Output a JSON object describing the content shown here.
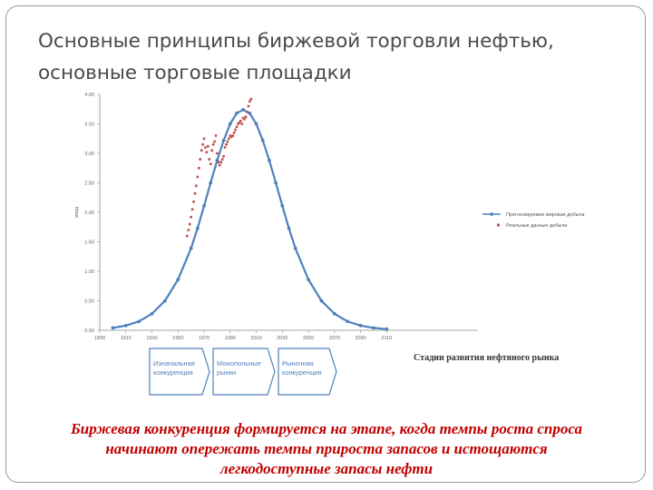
{
  "slide": {
    "title_line1": "Основные принципы биржевой торговли нефтью,",
    "title_line2": "основные торговые площадки",
    "stage_caption": "Стадии развития нефтяного рынка",
    "stages": [
      {
        "label_line1": "Изначальная",
        "label_line2": "конкуренция"
      },
      {
        "label_line1": "Монопольные",
        "label_line2": "рынки"
      },
      {
        "label_line1": "Рыночная",
        "label_line2": "конкуренция"
      }
    ],
    "footer_line1": "Биржевая конкуренция формируется на этапе, когда темпы роста спроса",
    "footer_line2": "начинают опережать темпы прироста запасов и истощаются",
    "footer_line3": "легкодоступные запасы нефти",
    "colors": {
      "modeled": "#4f81bd",
      "actual": "#c0504d",
      "stage_box": "#4f81bd",
      "footer_text": "#c00000"
    }
  },
  "chart_data": {
    "type": "scatter",
    "title": "",
    "xlabel": "",
    "ylabel": "млрд",
    "xlim": [
      1890,
      2180
    ],
    "ylim": [
      0,
      4
    ],
    "x_ticks": [
      "1890",
      "1910",
      "1930",
      "1950",
      "1970",
      "1990",
      "2010",
      "2030",
      "2050",
      "2070",
      "2090",
      "2110"
    ],
    "y_ticks": [
      "0.00",
      "0.50",
      "1.00",
      "1.50",
      "2.00",
      "2.50",
      "3.00",
      "3.50",
      "4.00"
    ],
    "series": [
      {
        "name": "Прогнозируемая мировая добыча",
        "style": "line-markers",
        "x": [
          1900,
          1910,
          1920,
          1930,
          1940,
          1950,
          1960,
          1965,
          1970,
          1975,
          1980,
          1985,
          1990,
          1995,
          2000,
          2005,
          2010,
          2015,
          2020,
          2025,
          2030,
          2035,
          2040,
          2050,
          2060,
          2070,
          2080,
          2090,
          2100,
          2110
        ],
        "y": [
          0.04,
          0.08,
          0.15,
          0.28,
          0.5,
          0.86,
          1.39,
          1.73,
          2.11,
          2.5,
          2.88,
          3.22,
          3.5,
          3.68,
          3.74,
          3.68,
          3.5,
          3.22,
          2.88,
          2.5,
          2.11,
          1.73,
          1.39,
          0.86,
          0.5,
          0.28,
          0.15,
          0.08,
          0.04,
          0.02
        ]
      },
      {
        "name": "Реальные данные добычи",
        "style": "markers",
        "x": [
          1957,
          1958,
          1959,
          1960,
          1961,
          1962,
          1963,
          1964,
          1965,
          1966,
          1967,
          1968,
          1969,
          1970,
          1971,
          1972,
          1973,
          1974,
          1975,
          1976,
          1977,
          1978,
          1979,
          1980,
          1981,
          1982,
          1983,
          1984,
          1985,
          1986,
          1987,
          1988,
          1989,
          1990,
          1991,
          1992,
          1993,
          1994,
          1995,
          1996,
          1997,
          1998,
          1999,
          2000,
          2001,
          2002,
          2003,
          2004,
          2005,
          2006
        ],
        "y": [
          1.6,
          1.7,
          1.8,
          1.92,
          2.05,
          2.18,
          2.32,
          2.45,
          2.6,
          2.75,
          2.9,
          3.05,
          3.15,
          3.25,
          3.1,
          3.02,
          3.12,
          2.9,
          2.82,
          3.05,
          3.15,
          3.2,
          3.3,
          3.0,
          2.85,
          2.8,
          2.85,
          2.9,
          2.95,
          3.1,
          3.15,
          3.2,
          3.25,
          3.3,
          3.28,
          3.3,
          3.35,
          3.4,
          3.45,
          3.5,
          3.52,
          3.55,
          3.5,
          3.6,
          3.58,
          3.62,
          3.7,
          3.8,
          3.88,
          3.92
        ]
      }
    ],
    "grid": false,
    "legend": "right"
  }
}
